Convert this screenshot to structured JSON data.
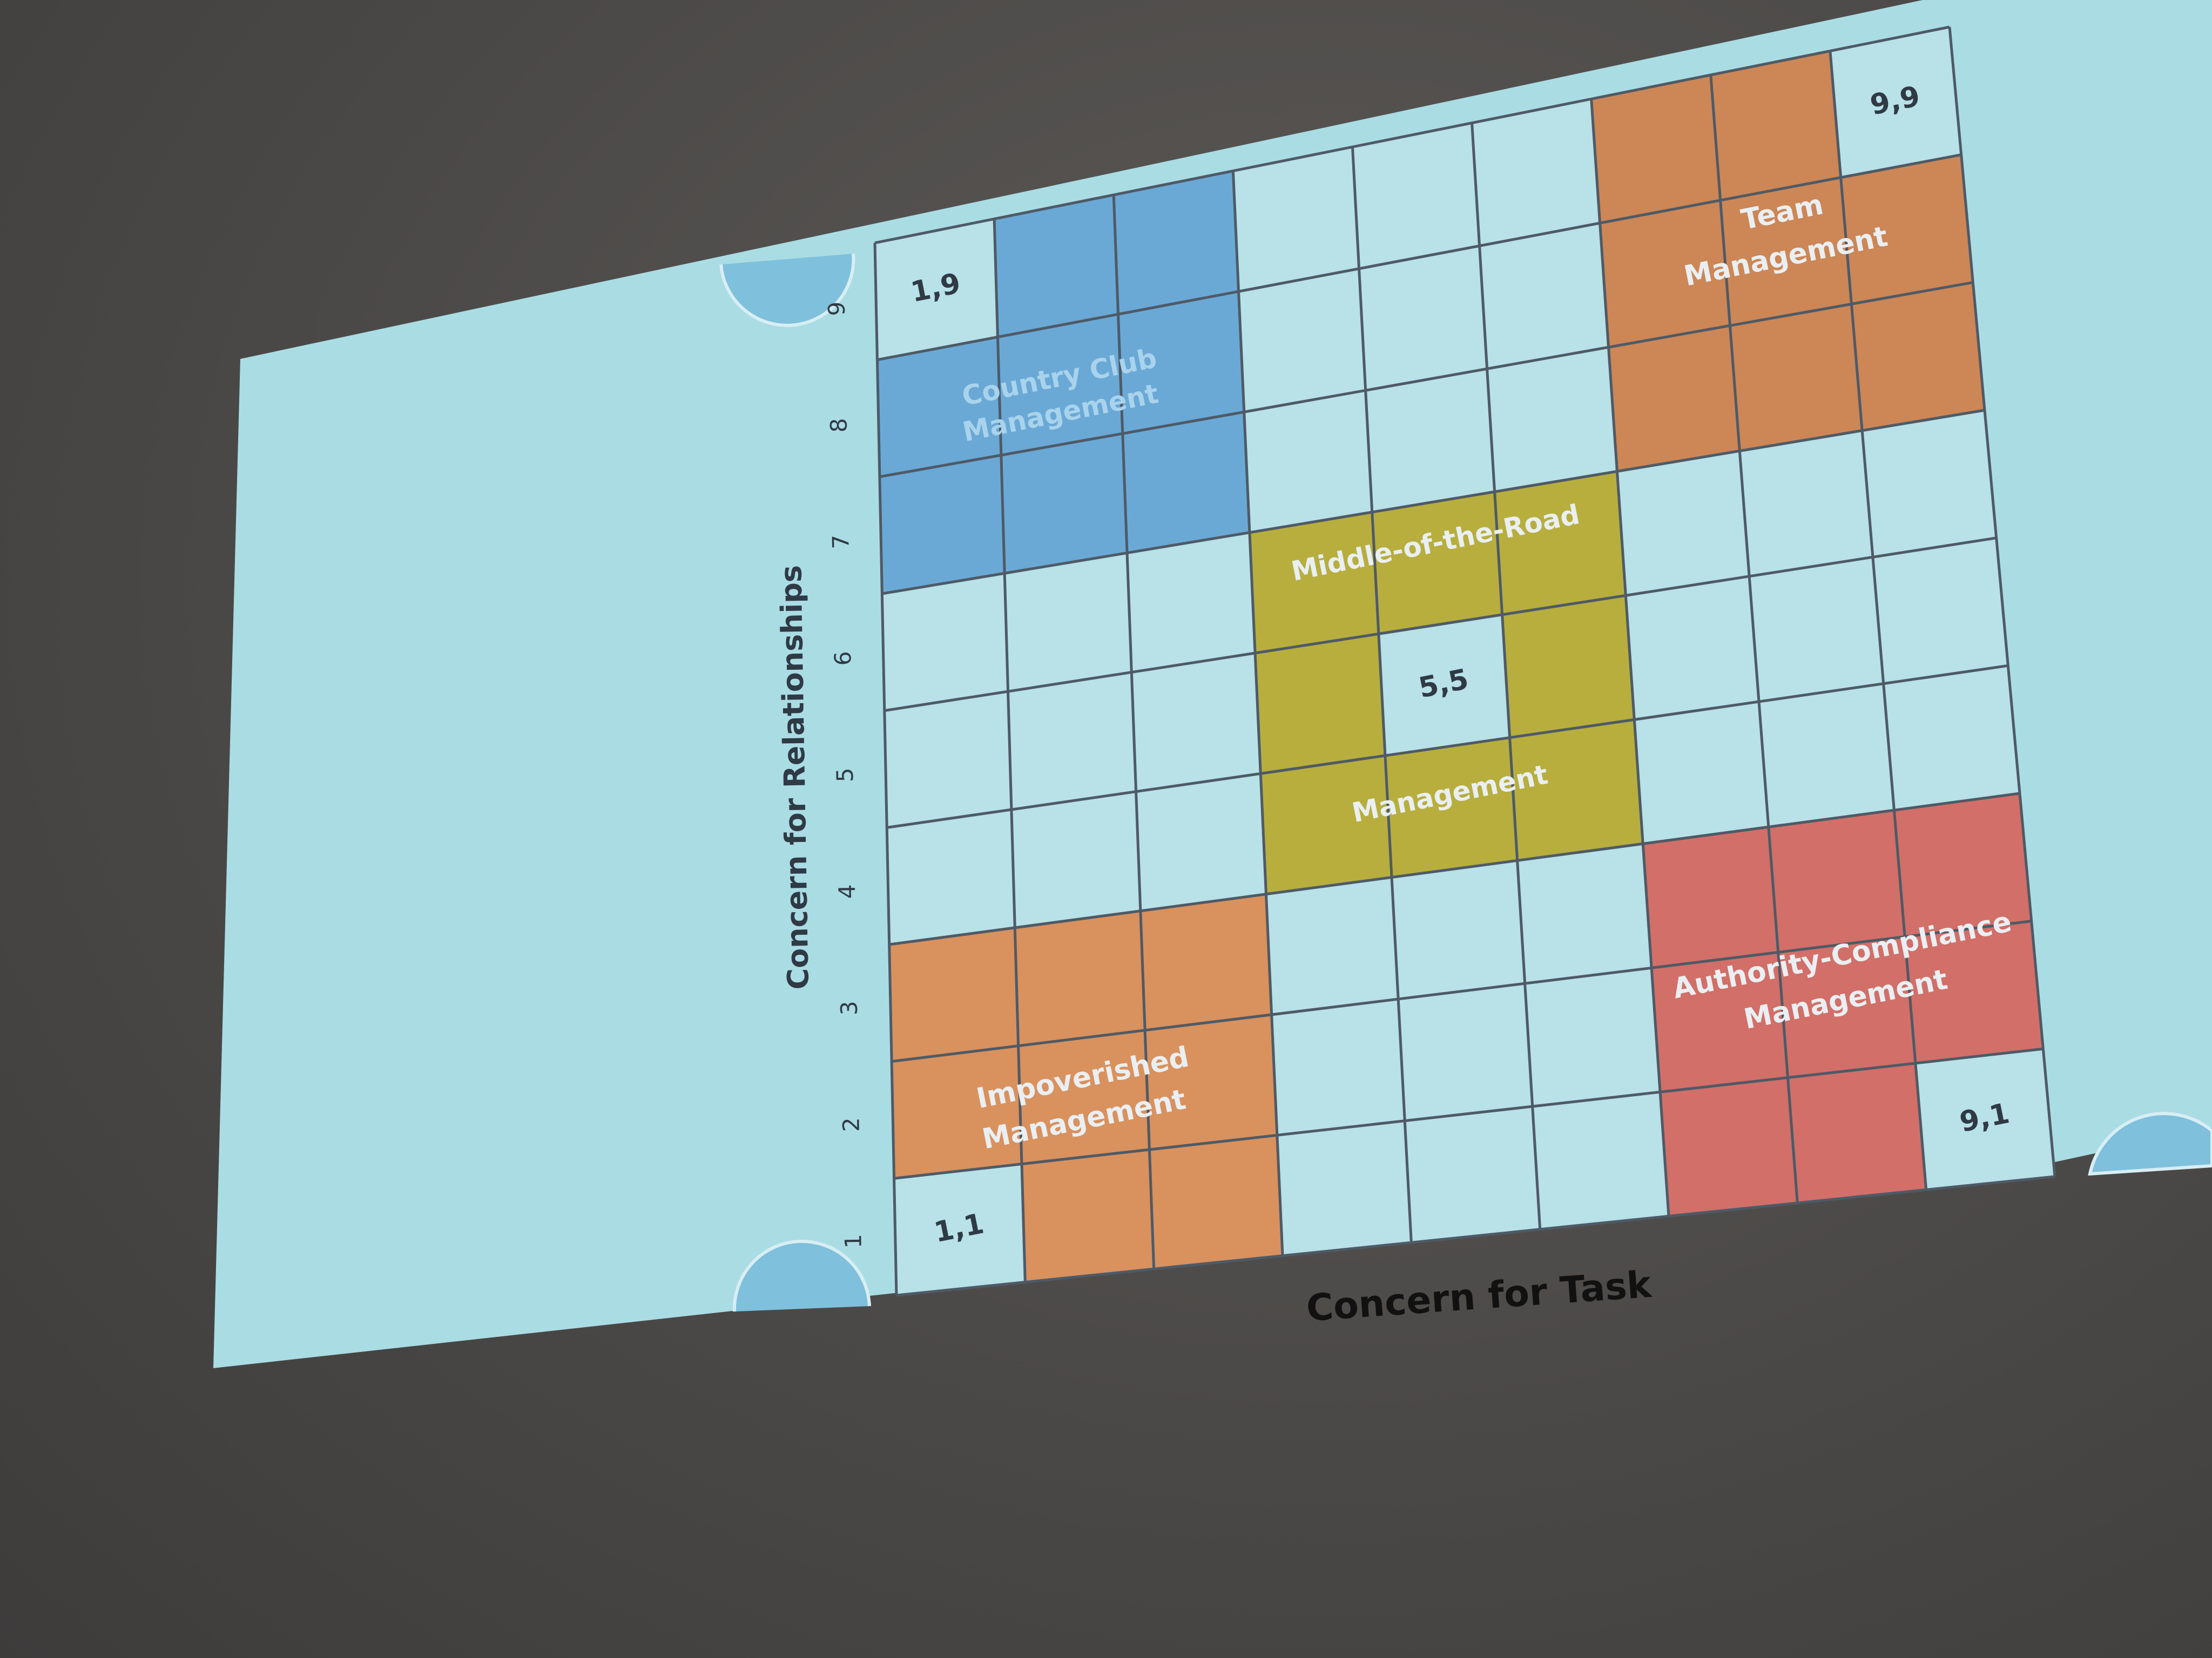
{
  "axes": {
    "y_label": "Concern for Relationships",
    "x_label": "Concern for Task",
    "y_ticks": [
      "1",
      "2",
      "3",
      "4",
      "5",
      "6",
      "7",
      "8",
      "9"
    ]
  },
  "corners": {
    "c11": "1,1",
    "c19": "1,9",
    "c55": "5,5",
    "c91": "9,1",
    "c99": "9,9"
  },
  "regions": {
    "country_club": {
      "line1": "Country Club",
      "line2": "Management",
      "color": "#6aa9d6"
    },
    "team": {
      "line1": "Team",
      "line2": "Management",
      "color": "#cd8656"
    },
    "middle": {
      "line1": "Middle-of-the-Road",
      "line2": "Management",
      "color": "#b7ae3e"
    },
    "impoverished": {
      "line1": "Impoverished",
      "line2": "Management",
      "color": "#d9915e"
    },
    "authority": {
      "line1": "Authority-Compliance",
      "line2": "Management",
      "color": "#d26f68"
    }
  },
  "colors": {
    "screen": "#a9dbe3",
    "cell": "#b8e1e8",
    "grid_line": "#4e5a66",
    "text_dark": "#2f3a44",
    "text_light": "#e9eff2"
  }
}
